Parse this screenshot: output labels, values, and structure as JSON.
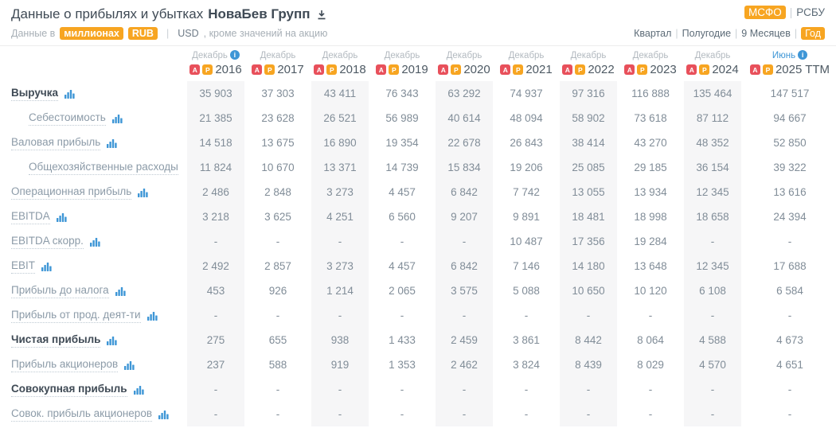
{
  "header": {
    "title_prefix": "Данные о прибылях и убытках",
    "company": "НоваБев Групп",
    "standards": [
      {
        "key": "msfo",
        "label": "МСФО",
        "active": true
      },
      {
        "key": "rsbu",
        "label": "РСБУ",
        "active": false
      }
    ],
    "periods": [
      {
        "key": "kvartal",
        "label": "Квартал",
        "active": false
      },
      {
        "key": "polugodie",
        "label": "Полугодие",
        "active": false
      },
      {
        "key": "9-mesyacev",
        "label": "9 Месяцев",
        "active": false
      },
      {
        "key": "god",
        "label": "Год",
        "active": true
      }
    ],
    "subtitle": {
      "prefix": "Данные в",
      "unit": "миллионах",
      "currency_active": "RUB",
      "currency_inactive": "USD",
      "suffix": ", кроме значений на акцию"
    }
  },
  "table": {
    "columns": [
      {
        "month": "Декабрь",
        "year": "2016",
        "info": true,
        "shaded": true,
        "month_highlight": false
      },
      {
        "month": "Декабрь",
        "year": "2017",
        "info": false,
        "shaded": false,
        "month_highlight": false
      },
      {
        "month": "Декабрь",
        "year": "2018",
        "info": false,
        "shaded": true,
        "month_highlight": false
      },
      {
        "month": "Декабрь",
        "year": "2019",
        "info": false,
        "shaded": false,
        "month_highlight": false
      },
      {
        "month": "Декабрь",
        "year": "2020",
        "info": false,
        "shaded": true,
        "month_highlight": false
      },
      {
        "month": "Декабрь",
        "year": "2021",
        "info": false,
        "shaded": false,
        "month_highlight": false
      },
      {
        "month": "Декабрь",
        "year": "2022",
        "info": false,
        "shaded": true,
        "month_highlight": false
      },
      {
        "month": "Декабрь",
        "year": "2023",
        "info": false,
        "shaded": false,
        "month_highlight": false
      },
      {
        "month": "Декабрь",
        "year": "2024",
        "info": false,
        "shaded": true,
        "month_highlight": false
      },
      {
        "month": "Июнь",
        "year": "2025 TTM",
        "info": true,
        "shaded": false,
        "month_highlight": true
      }
    ],
    "rows": [
      {
        "label": "Выручка",
        "bold": true,
        "indent": false,
        "values": [
          "35 903",
          "37 303",
          "43 411",
          "76 343",
          "63 292",
          "74 937",
          "97 316",
          "116 888",
          "135 464",
          "147 517"
        ]
      },
      {
        "label": "Себестоимость",
        "bold": false,
        "indent": true,
        "values": [
          "21 385",
          "23 628",
          "26 521",
          "56 989",
          "40 614",
          "48 094",
          "58 902",
          "73 618",
          "87 112",
          "94 667"
        ]
      },
      {
        "label": "Валовая прибыль",
        "bold": false,
        "indent": false,
        "values": [
          "14 518",
          "13 675",
          "16 890",
          "19 354",
          "22 678",
          "26 843",
          "38 414",
          "43 270",
          "48 352",
          "52 850"
        ]
      },
      {
        "label": "Общехозяйственные расходы",
        "bold": false,
        "indent": true,
        "values": [
          "11 824",
          "10 670",
          "13 371",
          "14 739",
          "15 834",
          "19 206",
          "25 085",
          "29 185",
          "36 154",
          "39 322"
        ]
      },
      {
        "label": "Операционная прибыль",
        "bold": false,
        "indent": false,
        "values": [
          "2 486",
          "2 848",
          "3 273",
          "4 457",
          "6 842",
          "7 742",
          "13 055",
          "13 934",
          "12 345",
          "13 616"
        ]
      },
      {
        "label": "EBITDA",
        "bold": false,
        "indent": false,
        "values": [
          "3 218",
          "3 625",
          "4 251",
          "6 560",
          "9 207",
          "9 891",
          "18 481",
          "18 998",
          "18 658",
          "24 394"
        ]
      },
      {
        "label": "EBITDA скорр.",
        "bold": false,
        "indent": false,
        "values": [
          "-",
          "-",
          "-",
          "-",
          "-",
          "10 487",
          "17 356",
          "19 284",
          "-",
          "-"
        ]
      },
      {
        "label": "EBIT",
        "bold": false,
        "indent": false,
        "values": [
          "2 492",
          "2 857",
          "3 273",
          "4 457",
          "6 842",
          "7 146",
          "14 180",
          "13 648",
          "12 345",
          "17 688"
        ]
      },
      {
        "label": "Прибыль до налога",
        "bold": false,
        "indent": false,
        "values": [
          "453",
          "926",
          "1 214",
          "2 065",
          "3 575",
          "5 088",
          "10 650",
          "10 120",
          "6 108",
          "6 584"
        ]
      },
      {
        "label": "Прибыль от прод. деят-ти",
        "bold": false,
        "indent": false,
        "values": [
          "-",
          "-",
          "-",
          "-",
          "-",
          "-",
          "-",
          "-",
          "-",
          "-"
        ]
      },
      {
        "label": "Чистая прибыль",
        "bold": true,
        "indent": false,
        "values": [
          "275",
          "655",
          "938",
          "1 433",
          "2 459",
          "3 861",
          "8 442",
          "8 064",
          "4 588",
          "4 673"
        ]
      },
      {
        "label": "Прибыль акционеров",
        "bold": false,
        "indent": false,
        "values": [
          "237",
          "588",
          "919",
          "1 353",
          "2 462",
          "3 824",
          "8 439",
          "8 029",
          "4 570",
          "4 651"
        ]
      },
      {
        "label": "Совокупная прибыль",
        "bold": true,
        "indent": false,
        "values": [
          "-",
          "-",
          "-",
          "-",
          "-",
          "-",
          "-",
          "-",
          "-",
          "-"
        ]
      },
      {
        "label": "Совок. прибыль акционеров",
        "bold": false,
        "indent": false,
        "values": [
          "-",
          "-",
          "-",
          "-",
          "-",
          "-",
          "-",
          "-",
          "-",
          "-"
        ]
      }
    ]
  },
  "colors": {
    "accent_orange": "#F7A521",
    "link_blue": "#3E96D6",
    "pdf_red": "#E8505B",
    "dark_text": "#3F4A55",
    "stripe": "#F6F6F7"
  }
}
